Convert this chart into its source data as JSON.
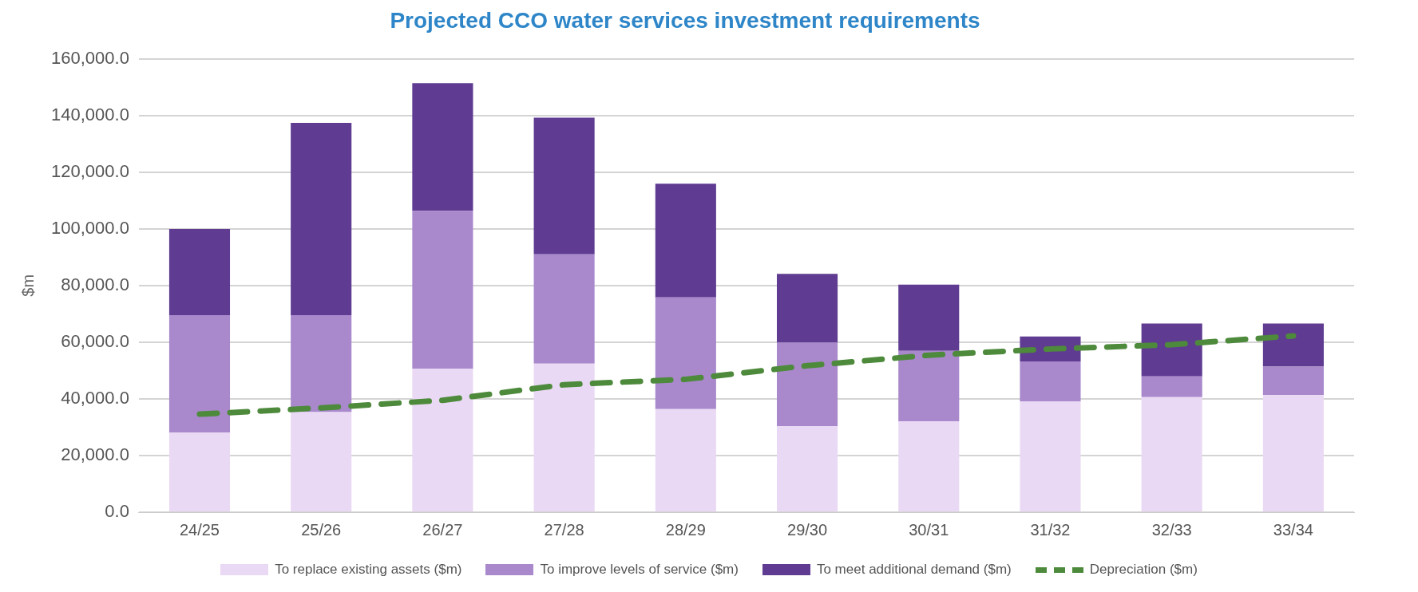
{
  "chart_data": {
    "type": "bar",
    "title": "Projected CCO water services investment requirements",
    "ylabel": "$m",
    "categories": [
      "24/25",
      "25/26",
      "26/27",
      "27/28",
      "28/29",
      "29/30",
      "30/31",
      "31/32",
      "32/33",
      "33/34"
    ],
    "stacked": true,
    "series": [
      {
        "name": "To replace existing assets ($m)",
        "color": "#ead9f5",
        "values": [
          28100,
          35300,
          50600,
          52400,
          36400,
          30400,
          32000,
          39100,
          40600,
          41300
        ]
      },
      {
        "name": "To improve levels of service ($m)",
        "color": "#a988cc",
        "values": [
          41400,
          34200,
          55700,
          38600,
          39400,
          29400,
          24900,
          14100,
          7300,
          10100
        ]
      },
      {
        "name": "To meet additional demand ($m)",
        "color": "#5f3b91",
        "values": [
          30400,
          67900,
          45100,
          48200,
          40100,
          24300,
          23400,
          8800,
          18700,
          15200
        ]
      },
      {
        "name": "Depreciation ($m)",
        "type": "line",
        "color": "#4e8a3c",
        "line_style": "dashed",
        "marker": "none",
        "values": [
          34600,
          36800,
          39500,
          45000,
          46900,
          51700,
          55400,
          57600,
          59100,
          62200
        ]
      }
    ],
    "ylim": [
      0,
      160000
    ],
    "yticks": [
      {
        "value": 0,
        "label": "0.0"
      },
      {
        "value": 20000,
        "label": "20,000.0"
      },
      {
        "value": 40000,
        "label": "40,000.0"
      },
      {
        "value": 60000,
        "label": "60,000.0"
      },
      {
        "value": 80000,
        "label": "80,000.0"
      },
      {
        "value": 100000,
        "label": "100,000.0"
      },
      {
        "value": 120000,
        "label": "120,000.0"
      },
      {
        "value": 140000,
        "label": "140,000.0"
      },
      {
        "value": 160000,
        "label": "160,000.0"
      }
    ],
    "grid": "y",
    "legend": "bottom"
  }
}
